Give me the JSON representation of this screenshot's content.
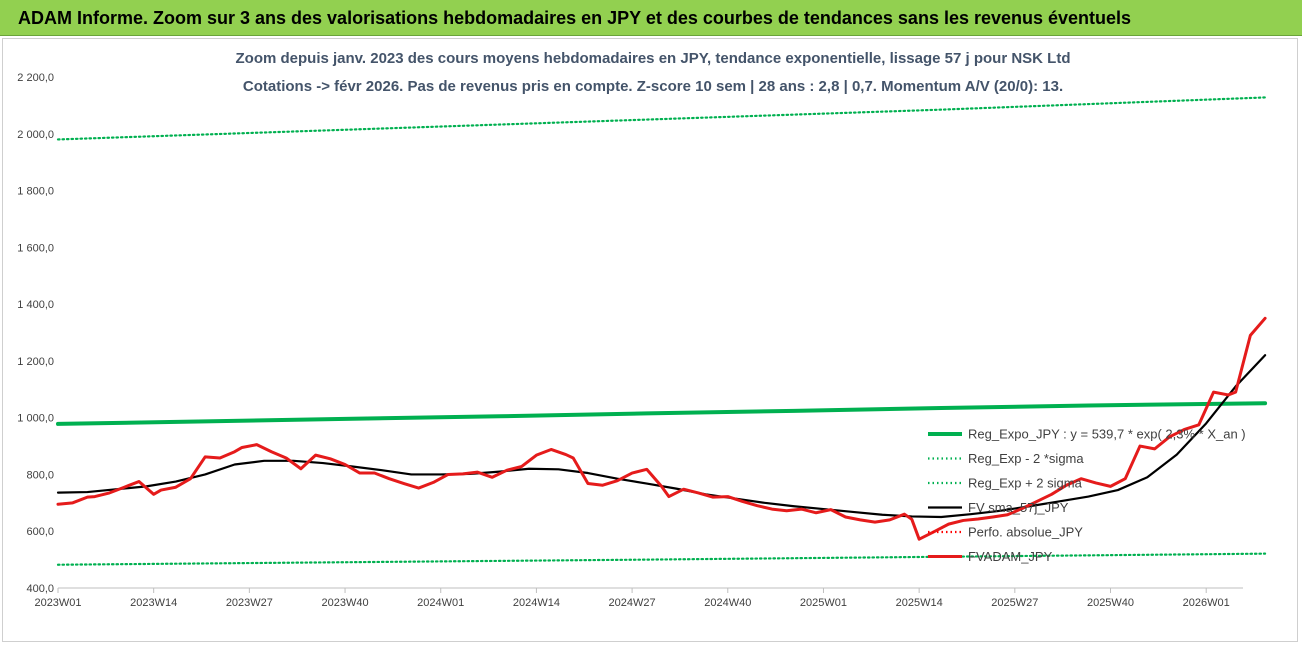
{
  "header": {
    "title": "ADAM Informe. Zoom sur 3 ans des valorisations hebdomadaires en JPY et des courbes de tendances sans les revenus éventuels"
  },
  "chart_data": {
    "type": "line",
    "title": "Zoom depuis janv. 2023 des cours moyens hebdomadaires en JPY, tendance exponentielle, lissage 57 j pour NSK Ltd",
    "subtitle": "Cotations -> févr 2026. Pas de revenus pris en compte. Z-score 10 sem | 28 ans : 2,8 | 0,7. Momentum A/V (20/0): 13.",
    "ylim": [
      400,
      2200
    ],
    "yticks": [
      "400,0",
      "600,0",
      "800,0",
      "1 000,0",
      "1 200,0",
      "1 400,0",
      "1 600,0",
      "1 800,0",
      "2 000,0",
      "2 200,0"
    ],
    "ytick_values": [
      400,
      600,
      800,
      1000,
      1200,
      1400,
      1600,
      1800,
      2000,
      2200
    ],
    "x_range_weeks": [
      0,
      161
    ],
    "xticks": [
      {
        "label": "2023W01",
        "week": 0
      },
      {
        "label": "2023W14",
        "week": 13
      },
      {
        "label": "2023W27",
        "week": 26
      },
      {
        "label": "2023W40",
        "week": 39
      },
      {
        "label": "2024W01",
        "week": 52
      },
      {
        "label": "2024W14",
        "week": 65
      },
      {
        "label": "2024W27",
        "week": 78
      },
      {
        "label": "2024W40",
        "week": 91
      },
      {
        "label": "2025W01",
        "week": 104
      },
      {
        "label": "2025W14",
        "week": 117
      },
      {
        "label": "2025W27",
        "week": 130
      },
      {
        "label": "2025W40",
        "week": 143
      },
      {
        "label": "2026W01",
        "week": 156
      }
    ],
    "grid": false,
    "legend_position": "bottom-right",
    "series": [
      {
        "name": "Reg_Expo_JPY : y = 539,7 * exp( 2,3% *  X_an )",
        "color": "#00b050",
        "style": "solid-thick",
        "x": [
          0,
          20,
          40,
          60,
          80,
          100,
          120,
          140,
          164
        ],
        "values": [
          978,
          987,
          996,
          1005,
          1015,
          1024,
          1034,
          1043,
          1051
        ]
      },
      {
        "name": "Reg_Exp - 2 *sigma",
        "color": "#00b050",
        "style": "dotted",
        "x": [
          0,
          40,
          80,
          120,
          164
        ],
        "values": [
          482,
          491,
          500,
          510,
          521
        ]
      },
      {
        "name": "Reg_Exp + 2 sigma",
        "color": "#00b050",
        "style": "dotted",
        "x": [
          0,
          40,
          80,
          120,
          164
        ],
        "values": [
          1980,
          2015,
          2050,
          2085,
          2128
        ]
      },
      {
        "name": "FV sma_57j_JPY",
        "color": "#000000",
        "style": "solid",
        "x": [
          0,
          4,
          8,
          12,
          16,
          20,
          24,
          28,
          32,
          36,
          40,
          44,
          48,
          52,
          56,
          60,
          64,
          68,
          72,
          76,
          80,
          84,
          88,
          92,
          96,
          100,
          104,
          108,
          112,
          116,
          120,
          124,
          128,
          132,
          136,
          140,
          144,
          148,
          152,
          156,
          160,
          164
        ],
        "values": [
          736,
          738,
          748,
          758,
          775,
          800,
          835,
          848,
          848,
          840,
          828,
          815,
          800,
          800,
          802,
          810,
          820,
          818,
          805,
          785,
          768,
          750,
          730,
          715,
          700,
          688,
          678,
          668,
          658,
          652,
          650,
          660,
          672,
          688,
          705,
          722,
          745,
          790,
          870,
          980,
          1110,
          1220
        ]
      },
      {
        "name": "Perfo. absolue_JPY",
        "color": "#ff0000",
        "style": "dotted",
        "x": [],
        "values": []
      },
      {
        "name": "FVADAM_JPY",
        "color": "#e51b1b",
        "style": "solid-thick",
        "x": [
          0,
          2,
          4,
          5,
          7,
          9,
          11,
          13,
          14,
          16,
          18,
          20,
          22,
          24,
          25,
          27,
          29,
          31,
          33,
          35,
          37,
          39,
          41,
          43,
          45,
          47,
          49,
          51,
          53,
          55,
          57,
          59,
          61,
          63,
          65,
          67,
          69,
          70,
          72,
          74,
          76,
          78,
          80,
          82,
          83,
          85,
          87,
          89,
          91,
          93,
          95,
          97,
          99,
          101,
          103,
          105,
          107,
          109,
          111,
          113,
          115,
          116,
          117,
          119,
          121,
          123,
          125,
          127,
          129,
          131,
          133,
          135,
          137,
          139,
          141,
          143,
          145,
          147,
          149,
          151,
          153,
          155,
          157,
          159,
          160,
          162,
          164
        ],
        "values": [
          695,
          700,
          720,
          722,
          735,
          755,
          775,
          730,
          745,
          755,
          785,
          862,
          858,
          880,
          895,
          905,
          880,
          858,
          820,
          868,
          855,
          835,
          805,
          805,
          785,
          768,
          752,
          772,
          800,
          802,
          808,
          790,
          815,
          828,
          868,
          888,
          870,
          858,
          768,
          762,
          778,
          805,
          818,
          758,
          722,
          748,
          735,
          720,
          722,
          705,
          690,
          678,
          672,
          678,
          665,
          676,
          650,
          640,
          632,
          640,
          660,
          642,
          572,
          598,
          625,
          638,
          643,
          650,
          658,
          680,
          705,
          730,
          762,
          785,
          770,
          758,
          785,
          900,
          890,
          932,
          958,
          975,
          1090,
          1080,
          1090,
          1290,
          1350
        ]
      }
    ]
  }
}
